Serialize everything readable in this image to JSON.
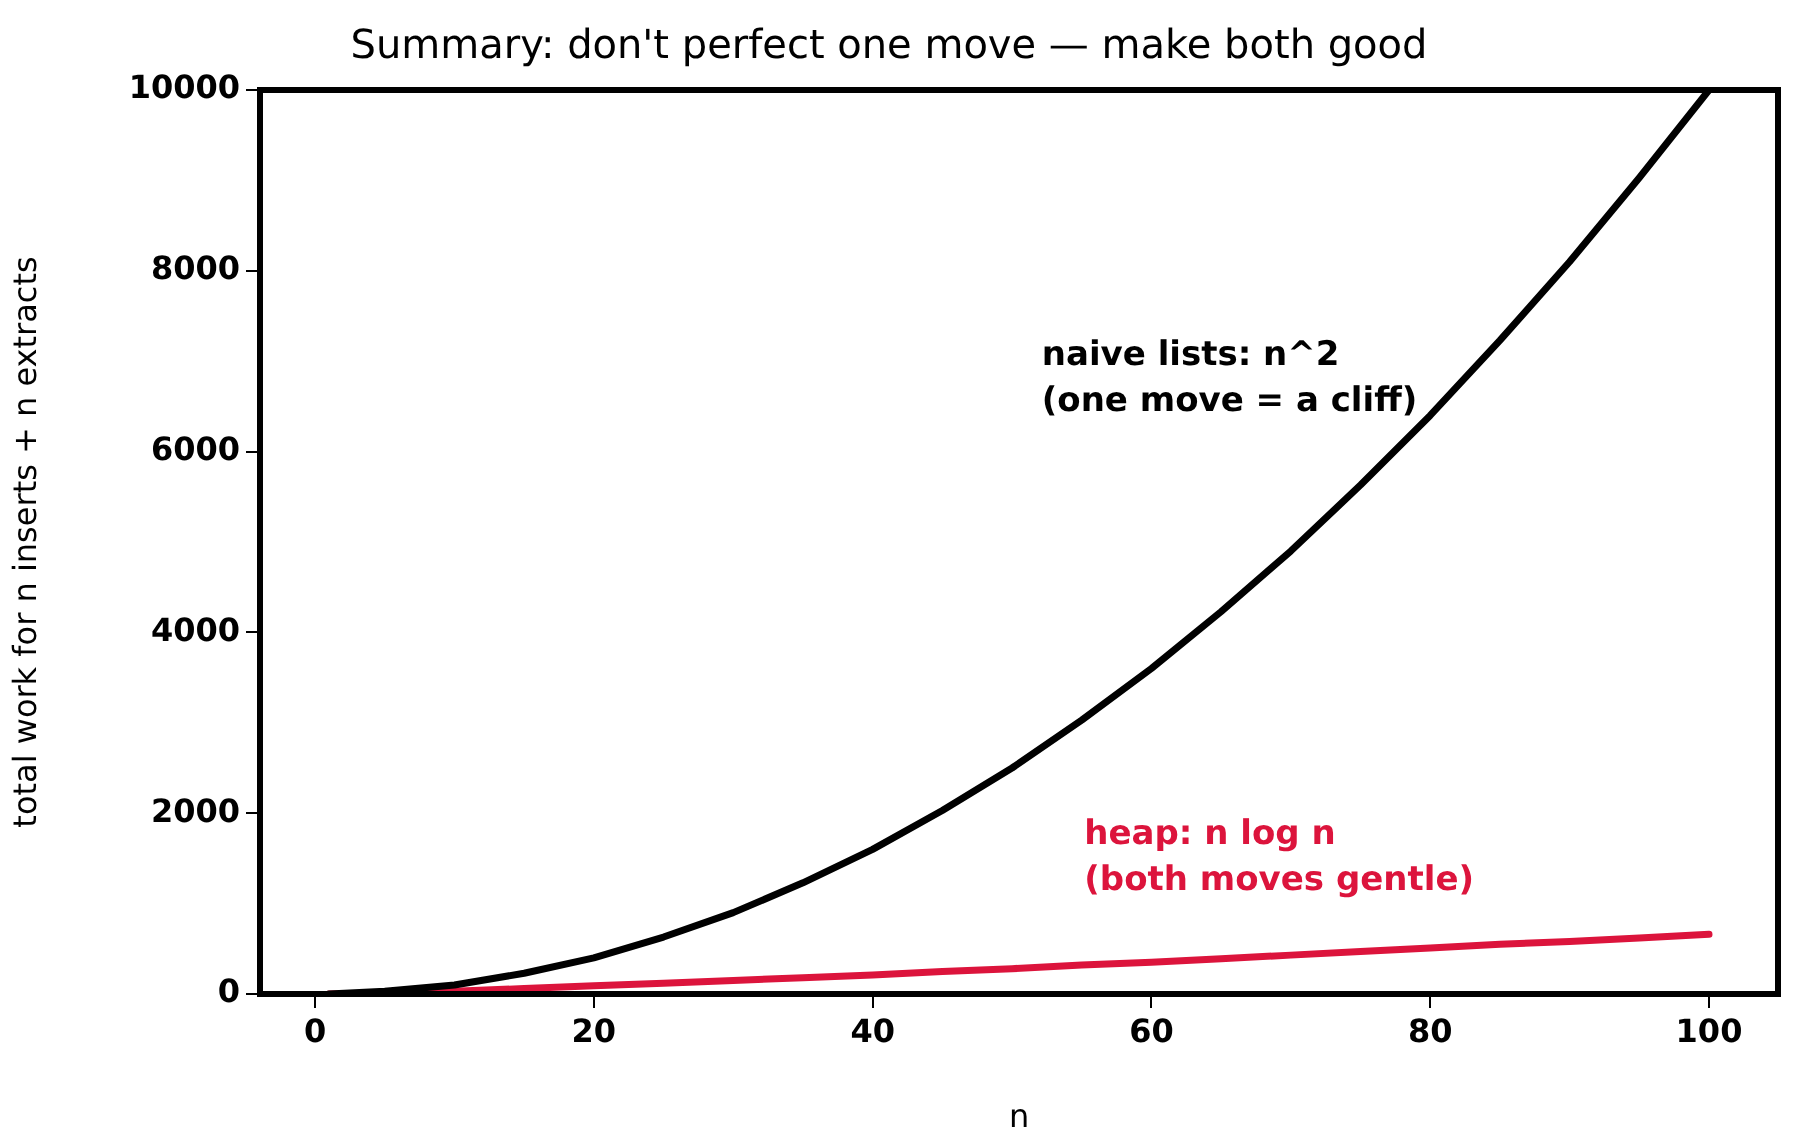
{
  "chart_data": {
    "type": "line",
    "title": "Summary: don't perfect one move — make both good",
    "xlabel": "n",
    "ylabel": "total work for n inserts + n extracts",
    "x": [
      1,
      5,
      10,
      15,
      20,
      25,
      30,
      35,
      40,
      45,
      50,
      55,
      60,
      65,
      70,
      75,
      80,
      85,
      90,
      95,
      100
    ],
    "series": [
      {
        "name": "naive lists: n^2\n(one move = a cliff)",
        "color": "#000000",
        "values": [
          0,
          30,
          100,
          230,
          400,
          630,
          900,
          1230,
          1600,
          2030,
          2500,
          3030,
          3600,
          4230,
          4900,
          5630,
          6400,
          7230,
          8100,
          9030,
          10000
        ]
      },
      {
        "name": "heap: n log n\n(both moves gentle)",
        "color": "#dc143c",
        "values": [
          0,
          10,
          30,
          60,
          90,
          120,
          150,
          180,
          210,
          250,
          280,
          320,
          350,
          390,
          430,
          470,
          510,
          550,
          580,
          620,
          660
        ]
      }
    ],
    "xlim": [
      -3.95,
      104.95
    ],
    "xticks": [
      0,
      20,
      40,
      60,
      80,
      100
    ],
    "ylim": [
      0,
      10000
    ],
    "yticks": [
      0,
      2000,
      4000,
      6000,
      8000,
      10000
    ],
    "grid": false,
    "legend": false,
    "marker": "none",
    "line_style": "solid"
  }
}
